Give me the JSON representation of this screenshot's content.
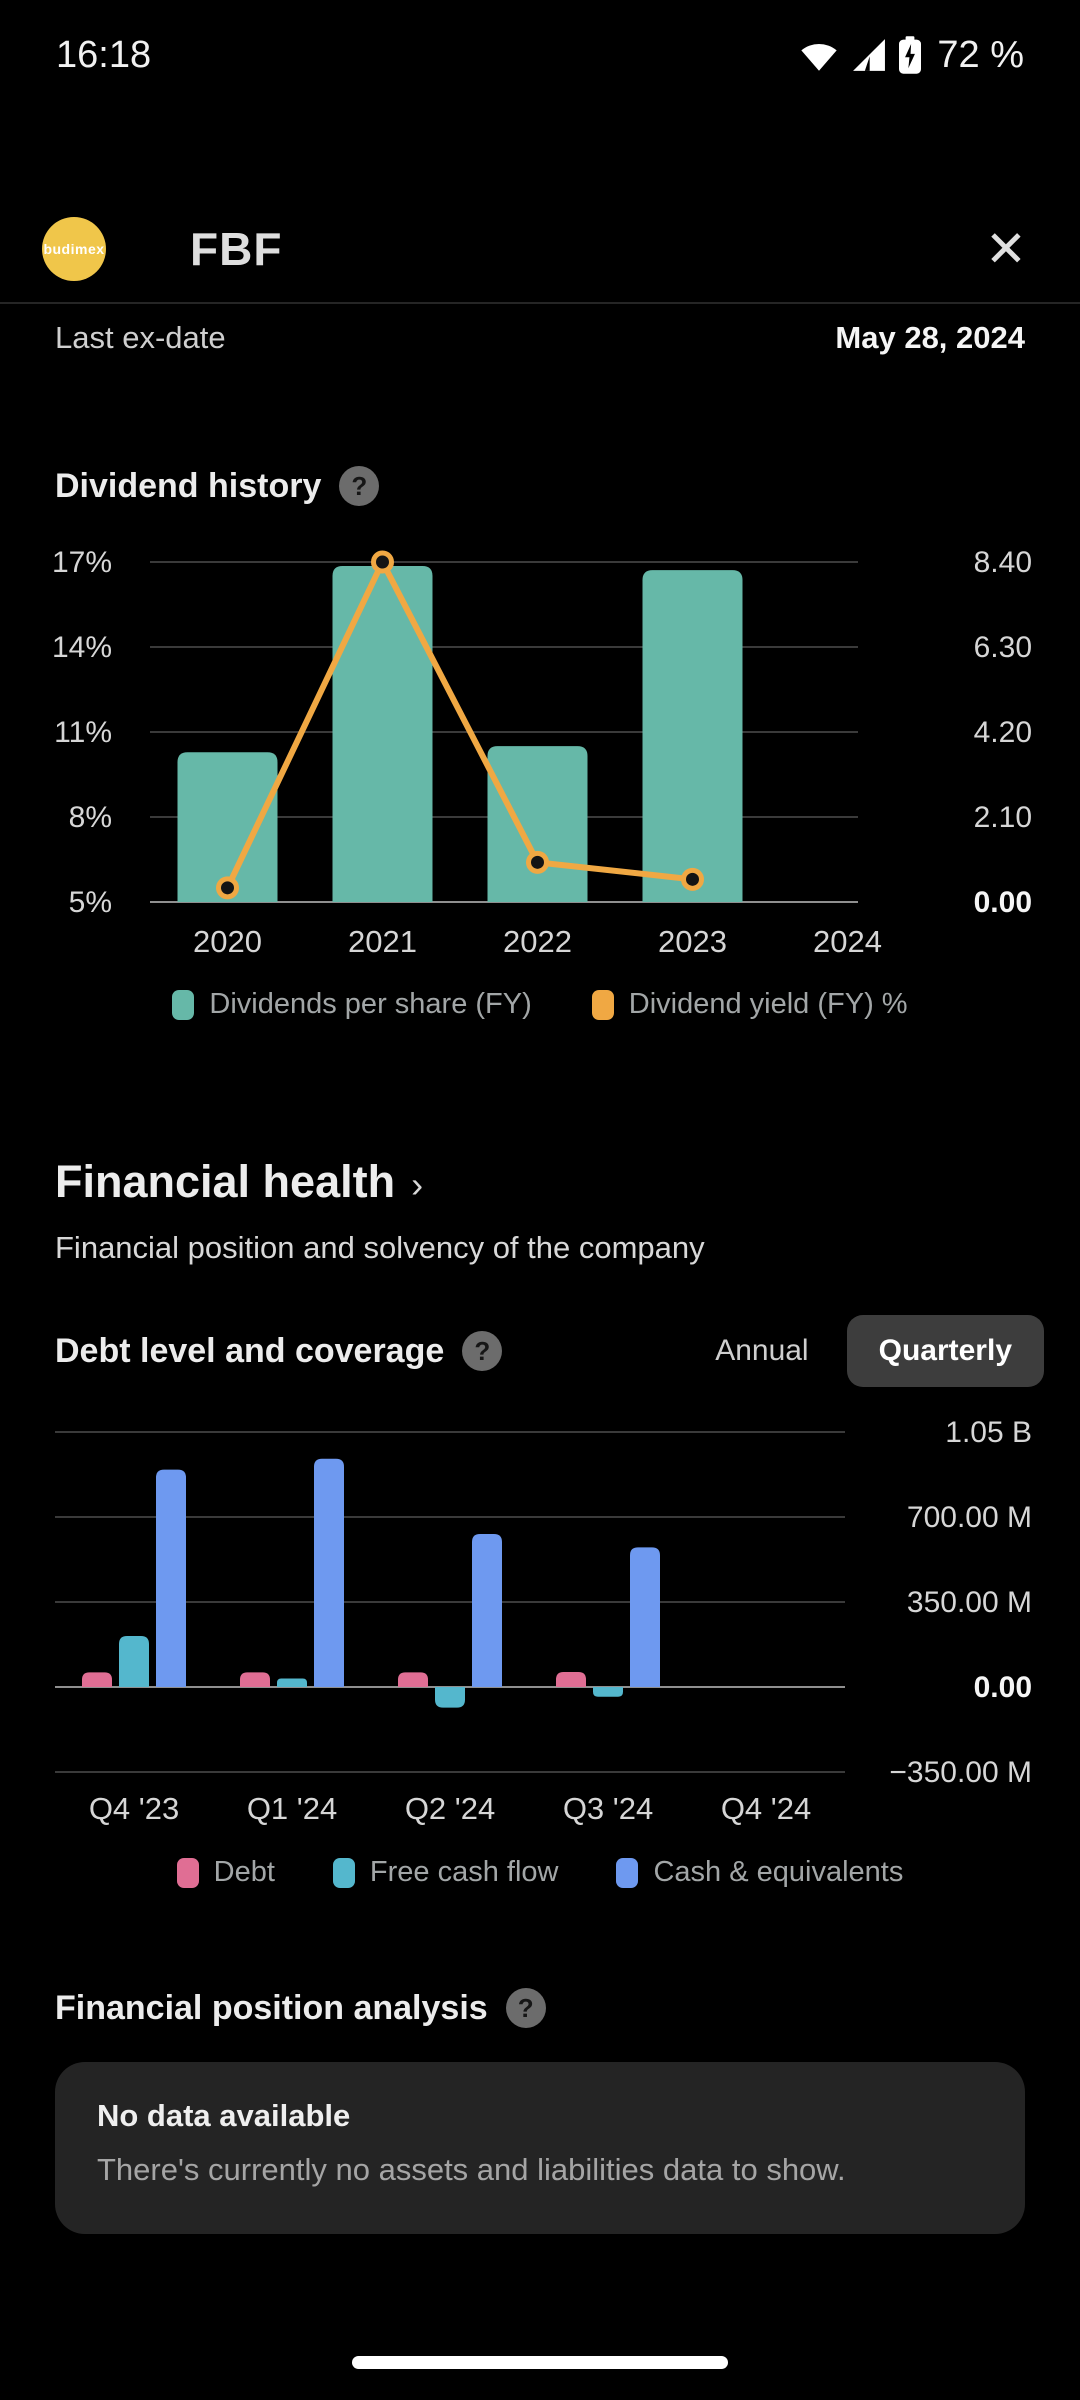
{
  "status_bar": {
    "time": "16:18",
    "battery": "72 %"
  },
  "icons": {
    "help": "?",
    "close": "✕"
  },
  "header": {
    "title": "FBF",
    "logo_text": "budimex"
  },
  "info_row": {
    "label": "Last ex-date",
    "value": "May 28, 2024"
  },
  "dividend_section": {
    "title": "Dividend history"
  },
  "financial_health": {
    "title": "Financial health",
    "chevron": "›",
    "subtitle": "Financial position and solvency of the company"
  },
  "debt_section": {
    "title": "Debt level and coverage",
    "toggle": {
      "options": [
        "Annual",
        "Quarterly"
      ],
      "selected": "Quarterly"
    }
  },
  "position_section": {
    "title": "Financial position analysis",
    "card": {
      "title": "No data available",
      "message": "There's currently no assets and liabilities data to show."
    }
  },
  "chart_data": [
    {
      "type": "bar",
      "title": "Dividend history",
      "categories": [
        "2020",
        "2021",
        "2022",
        "2023",
        "2024"
      ],
      "series": [
        {
          "name": "Dividends per share (FY)",
          "type": "bar",
          "axis": "right",
          "color": "#66b8a8",
          "values": [
            3.7,
            8.3,
            3.85,
            8.2,
            null
          ]
        },
        {
          "name": "Dividend yield (FY) %",
          "type": "line",
          "axis": "left",
          "color": "#f0a843",
          "values": [
            5.5,
            17,
            6.4,
            5.8,
            null
          ]
        }
      ],
      "left_axis": {
        "labels": [
          "17%",
          "14%",
          "11%",
          "8%",
          "5%"
        ],
        "min": 5,
        "max": 17
      },
      "right_axis": {
        "labels": [
          "8.40",
          "6.30",
          "4.20",
          "2.10",
          "0.00"
        ],
        "min": 0,
        "max": 8.4
      },
      "legend_position": "bottom",
      "grid": true
    },
    {
      "type": "bar",
      "title": "Debt level and coverage (Quarterly)",
      "categories": [
        "Q4 '23",
        "Q1 '24",
        "Q2 '24",
        "Q3 '24",
        "Q4 '24"
      ],
      "series": [
        {
          "name": "Debt",
          "type": "bar",
          "color": "#e06e94",
          "values": [
            60,
            60,
            60,
            62,
            null
          ]
        },
        {
          "name": "Free cash flow",
          "type": "bar",
          "color": "#54b7cd",
          "values": [
            210,
            35,
            -85,
            -40,
            null
          ]
        },
        {
          "name": "Cash & equivalents",
          "type": "bar",
          "color": "#6e99f0",
          "values": [
            895,
            940,
            630,
            575,
            null
          ]
        }
      ],
      "right_axis": {
        "labels": [
          "1.05 B",
          "700.00 M",
          "350.00 M",
          "0.00",
          "−350.00 M"
        ],
        "min": -350,
        "max": 1050
      },
      "unit": "M (currency)",
      "legend_position": "bottom",
      "grid": true
    }
  ]
}
